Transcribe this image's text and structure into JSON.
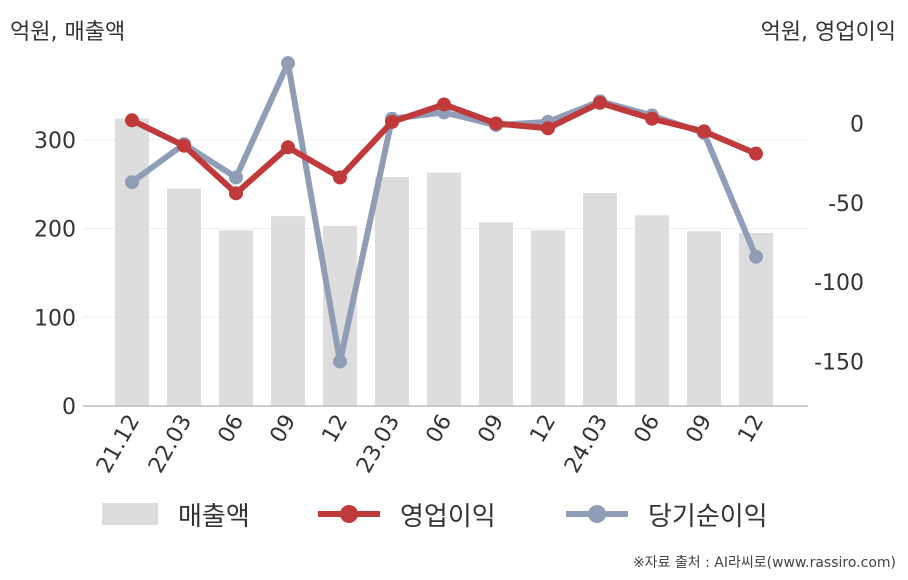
{
  "header": {
    "left_unit": "억원, 매출액",
    "right_unit": "억원, 영업이익"
  },
  "legend": {
    "revenue": "매출액",
    "operating": "영업이익",
    "net": "당기순이익"
  },
  "source": "※자료 출처 : AI라씨로(www.rassiro.com)",
  "colors": {
    "revenue": "#dddddd",
    "operating": "#c0393b",
    "net": "#8f9db6",
    "axis": "#bbbbbb",
    "grid": "#eeeeee",
    "text": "#333333"
  },
  "chart_data": {
    "type": "bar",
    "categories": [
      "21.12",
      "22.03",
      "06",
      "09",
      "12",
      "23.03",
      "06",
      "09",
      "12",
      "24.03",
      "06",
      "09",
      "12"
    ],
    "left_axis": {
      "ticks": [
        0,
        100,
        200,
        300
      ],
      "range": [
        0,
        390
      ]
    },
    "right_axis": {
      "ticks": [
        0,
        -50,
        -100,
        -150
      ],
      "range": [
        -178,
        40
      ]
    },
    "series": [
      {
        "name": "매출액",
        "type": "bar",
        "axis": "left",
        "values": [
          324,
          245,
          198,
          214,
          203,
          258,
          263,
          207,
          198,
          240,
          215,
          197,
          195
        ]
      },
      {
        "name": "영업이익",
        "type": "line",
        "axis": "right",
        "values": [
          2,
          -14,
          -44,
          -15,
          -34,
          1,
          12,
          0,
          -3,
          13,
          3,
          -5,
          -19
        ]
      },
      {
        "name": "당기순이익",
        "type": "line",
        "axis": "right",
        "values": [
          -37,
          -13,
          -34,
          38,
          -150,
          3,
          7,
          -1,
          1,
          14,
          5,
          -6,
          -84
        ]
      }
    ]
  }
}
